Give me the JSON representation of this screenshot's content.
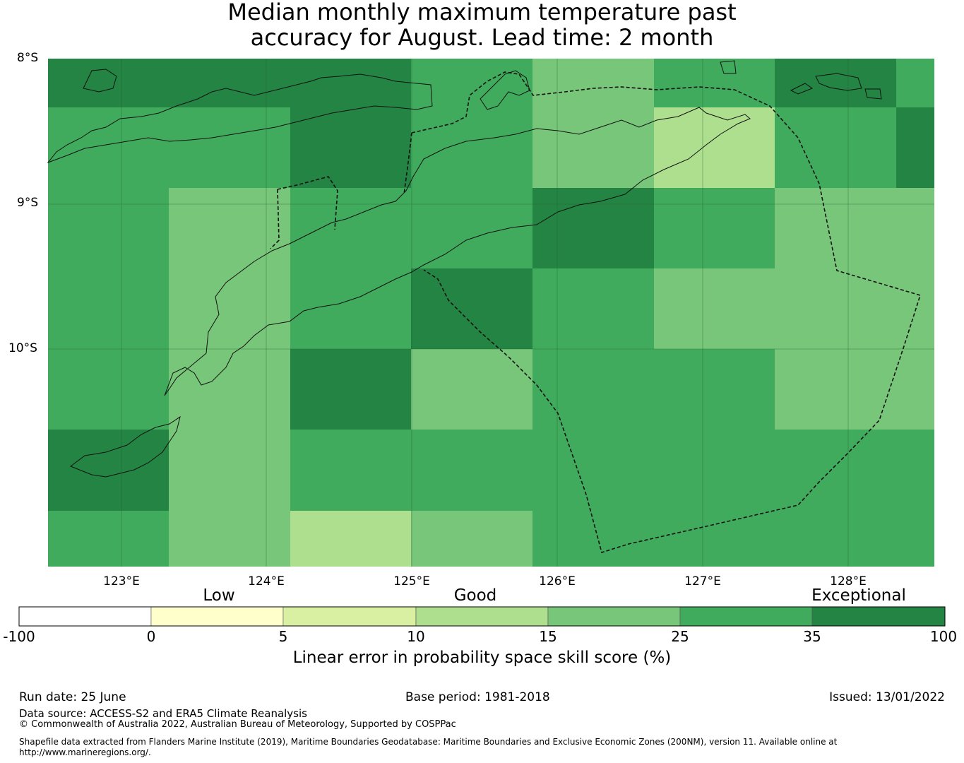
{
  "title": {
    "line1": "Median monthly maximum temperature past",
    "line2": "accuracy for August. Lead time: 2 month"
  },
  "map": {
    "lat_labels": [
      "8°S",
      "9°S",
      "10°S"
    ],
    "lon_labels": [
      "123°E",
      "124°E",
      "125°E",
      "126°E",
      "127°E",
      "128°E"
    ],
    "category_labels": [
      "Low",
      "Good",
      "Exceptional"
    ],
    "colors": {
      "c10_15": "#addf8e",
      "c15_25": "#78c679",
      "c25_35": "#41ab5d",
      "c35_100": "#238443"
    },
    "grid_cells": [
      [
        "c35_100",
        "c35_100",
        "c35_100",
        "c25_35",
        "c15_25",
        "c25_35",
        "c35_100",
        "c25_35"
      ],
      [
        "c25_35",
        "c25_35",
        "c35_100",
        "c25_35",
        "c15_25",
        "c10_15",
        "c25_35",
        "c35_100"
      ],
      [
        "c25_35",
        "c15_25",
        "c25_35",
        "c25_35",
        "c35_100",
        "c25_35",
        "c15_25",
        "c15_25"
      ],
      [
        "c25_35",
        "c15_25",
        "c25_35",
        "c35_100",
        "c25_35",
        "c15_25",
        "c15_25",
        "c15_25"
      ],
      [
        "c25_35",
        "c15_25",
        "c35_100",
        "c15_25",
        "c25_35",
        "c25_35",
        "c15_25",
        "c15_25"
      ],
      [
        "c35_100",
        "c15_25",
        "c25_35",
        "c25_35",
        "c25_35",
        "c25_35",
        "c25_35",
        "c25_35"
      ],
      [
        "c25_35",
        "c15_25",
        "c10_15",
        "c15_25",
        "c25_35",
        "c25_35",
        "c25_35",
        "c25_35"
      ]
    ]
  },
  "colorbar": {
    "tick_labels": [
      "-100",
      "0",
      "5",
      "10",
      "15",
      "25",
      "35",
      "100"
    ],
    "segment_colors": [
      "#ffffff",
      "#ffffcc",
      "#d9f0a3",
      "#addf8e",
      "#78c679",
      "#41ab5d",
      "#238443"
    ],
    "label": "Linear error in probability space skill score (%)"
  },
  "footer": {
    "run_date": "Run date: 25 June",
    "base_period": "Base period: 1981-2018",
    "issued": "Issued: 13/01/2022",
    "data_source": "Data source: ACCESS-S2 and ERA5 Climate Reanalysis",
    "copyright": "© Commonwealth of Australia 2022, Australian Bureau of Meteorology, Supported by COSPPac",
    "shapefile_line1": "Shapefile data extracted from Flanders Marine Institute (2019), Maritime Boundaries Geodatabase: Maritime Boundaries and Exclusive Economic Zones (200NM), version 11. Available online at",
    "shapefile_line2": "http://www.marineregions.org/."
  }
}
